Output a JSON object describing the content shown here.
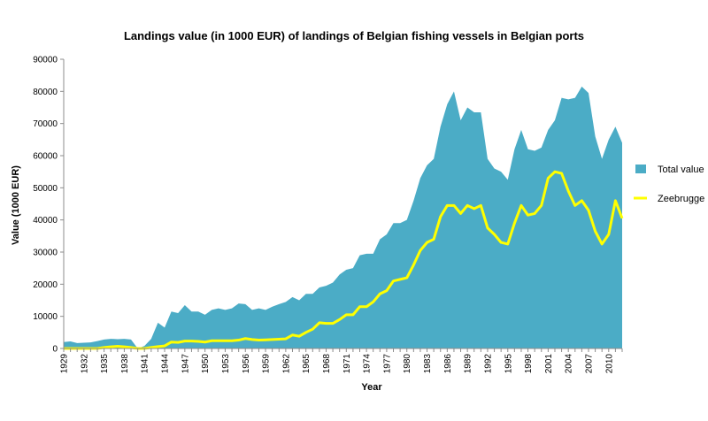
{
  "chart_data": {
    "type": "area",
    "title": "Landings value (in 1000 EUR) of landings of Belgian fishing vessels in Belgian ports",
    "xlabel": "Year",
    "ylabel": "Value  (1000 EUR)",
    "x": [
      1929,
      1930,
      1931,
      1932,
      1933,
      1934,
      1935,
      1936,
      1937,
      1938,
      1939,
      1940,
      1941,
      1942,
      1943,
      1944,
      1945,
      1946,
      1947,
      1948,
      1949,
      1950,
      1951,
      1952,
      1953,
      1954,
      1955,
      1956,
      1957,
      1958,
      1959,
      1960,
      1961,
      1962,
      1963,
      1964,
      1965,
      1966,
      1967,
      1968,
      1969,
      1970,
      1971,
      1972,
      1973,
      1974,
      1975,
      1976,
      1977,
      1978,
      1979,
      1980,
      1981,
      1982,
      1983,
      1984,
      1985,
      1986,
      1987,
      1988,
      1989,
      1990,
      1991,
      1992,
      1993,
      1994,
      1995,
      1996,
      1997,
      1998,
      1999,
      2000,
      2001,
      2002,
      2003,
      2004,
      2005,
      2006,
      2007,
      2008,
      2009,
      2010,
      2011,
      2012
    ],
    "x_tick_labels": [
      "1929",
      "1932",
      "1935",
      "1938",
      "1941",
      "1944",
      "1947",
      "1950",
      "1953",
      "1956",
      "1959",
      "1962",
      "1965",
      "1968",
      "1971",
      "1974",
      "1977",
      "1980",
      "1983",
      "1986",
      "1989",
      "1992",
      "1995",
      "1998",
      "2001",
      "2004",
      "2007",
      "2010"
    ],
    "ylim": [
      0,
      90000
    ],
    "y_ticks": [
      "0",
      "10000",
      "20000",
      "30000",
      "40000",
      "50000",
      "60000",
      "70000",
      "80000",
      "90000"
    ],
    "grid": false,
    "legend_position": "right",
    "series": [
      {
        "name": "Total value",
        "type": "area",
        "color": "#4BACC6",
        "values": [
          2000,
          2200,
          1700,
          1800,
          1900,
          2300,
          2800,
          3000,
          2900,
          3000,
          2800,
          0,
          800,
          3000,
          8000,
          6500,
          11500,
          11000,
          13500,
          11500,
          11500,
          10500,
          12000,
          12500,
          12000,
          12500,
          14000,
          13800,
          12000,
          12500,
          12000,
          13000,
          13800,
          14500,
          16000,
          15000,
          17000,
          17000,
          19000,
          19500,
          20500,
          23000,
          24500,
          25000,
          29000,
          29500,
          29500,
          34000,
          35500,
          39000,
          39000,
          40000,
          46000,
          53000,
          57000,
          59000,
          69000,
          76000,
          80000,
          71000,
          75000,
          73500,
          73500,
          59000,
          56000,
          55000,
          52500,
          62000,
          68000,
          62000,
          61500,
          62500,
          68000,
          71000,
          78000,
          77500,
          78000,
          81500,
          79500,
          66000,
          59000,
          65000,
          69000,
          64000
        ]
      },
      {
        "name": "Zeebrugge",
        "type": "line",
        "color": "#FFFF00",
        "values": [
          0,
          0,
          0,
          0,
          0,
          0,
          300,
          500,
          700,
          500,
          300,
          0,
          0,
          300,
          600,
          800,
          2000,
          1900,
          2300,
          2300,
          2200,
          2000,
          2400,
          2400,
          2400,
          2400,
          2600,
          3100,
          2800,
          2600,
          2700,
          2800,
          2900,
          3000,
          4200,
          3800,
          5000,
          6000,
          8000,
          7800,
          7800,
          9000,
          10500,
          10500,
          13000,
          13000,
          14500,
          17000,
          18000,
          21000,
          21500,
          22000,
          26000,
          30500,
          33000,
          34000,
          41000,
          44500,
          44500,
          42000,
          44500,
          43500,
          44500,
          37500,
          35500,
          33000,
          32500,
          39000,
          44500,
          41500,
          42000,
          44500,
          53000,
          55000,
          54500,
          49000,
          44500,
          46000,
          43000,
          36500,
          32500,
          35500,
          46000,
          40500
        ]
      }
    ]
  }
}
